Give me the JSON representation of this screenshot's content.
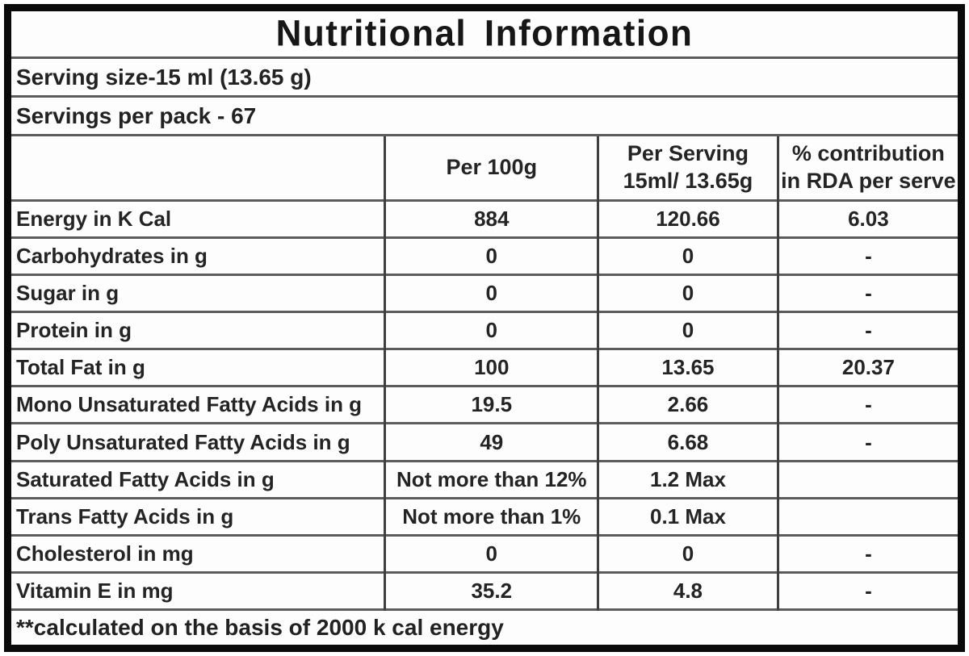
{
  "title": "Nutritional Information",
  "serving_size": "Serving size-15 ml (13.65 g)",
  "servings_per_pack": "Servings per pack - 67",
  "table": {
    "headers": [
      "",
      "Per 100g",
      "Per Serving\n15ml/ 13.65g",
      "% contribution\nin RDA per serve"
    ],
    "rows": [
      {
        "label": "Energy in K Cal",
        "per_100g": "884",
        "per_serving": "120.66",
        "rda": "6.03"
      },
      {
        "label": "Carbohydrates in g",
        "per_100g": "0",
        "per_serving": "0",
        "rda": "-"
      },
      {
        "label": "Sugar in g",
        "per_100g": "0",
        "per_serving": "0",
        "rda": "-"
      },
      {
        "label": "Protein in g",
        "per_100g": "0",
        "per_serving": "0",
        "rda": "-"
      },
      {
        "label": "Total Fat in g",
        "per_100g": "100",
        "per_serving": "13.65",
        "rda": "20.37"
      },
      {
        "label": "Mono Unsaturated Fatty Acids in g",
        "per_100g": "19.5",
        "per_serving": "2.66",
        "rda": "-"
      },
      {
        "label": "Poly Unsaturated Fatty Acids in g",
        "per_100g": "49",
        "per_serving": "6.68",
        "rda": "-"
      },
      {
        "label": "Saturated Fatty Acids in g",
        "per_100g": "Not more than 12%",
        "per_serving": "1.2 Max",
        "rda": ""
      },
      {
        "label": "Trans Fatty Acids in g",
        "per_100g": "Not more than 1%",
        "per_serving": "0.1 Max",
        "rda": ""
      },
      {
        "label": "Cholesterol in mg",
        "per_100g": "0",
        "per_serving": "0",
        "rda": "-"
      },
      {
        "label": "Vitamin E in mg",
        "per_100g": "35.2",
        "per_serving": "4.8",
        "rda": "-"
      }
    ]
  },
  "footnote": "**calculated on the basis of 2000 k cal energy",
  "colors": {
    "frame_border": "#0a0a0a",
    "row_line": "#5c5c5c",
    "column_line": "#3f3f3f",
    "text": "#1c1c1c",
    "background": "#ffffff"
  }
}
